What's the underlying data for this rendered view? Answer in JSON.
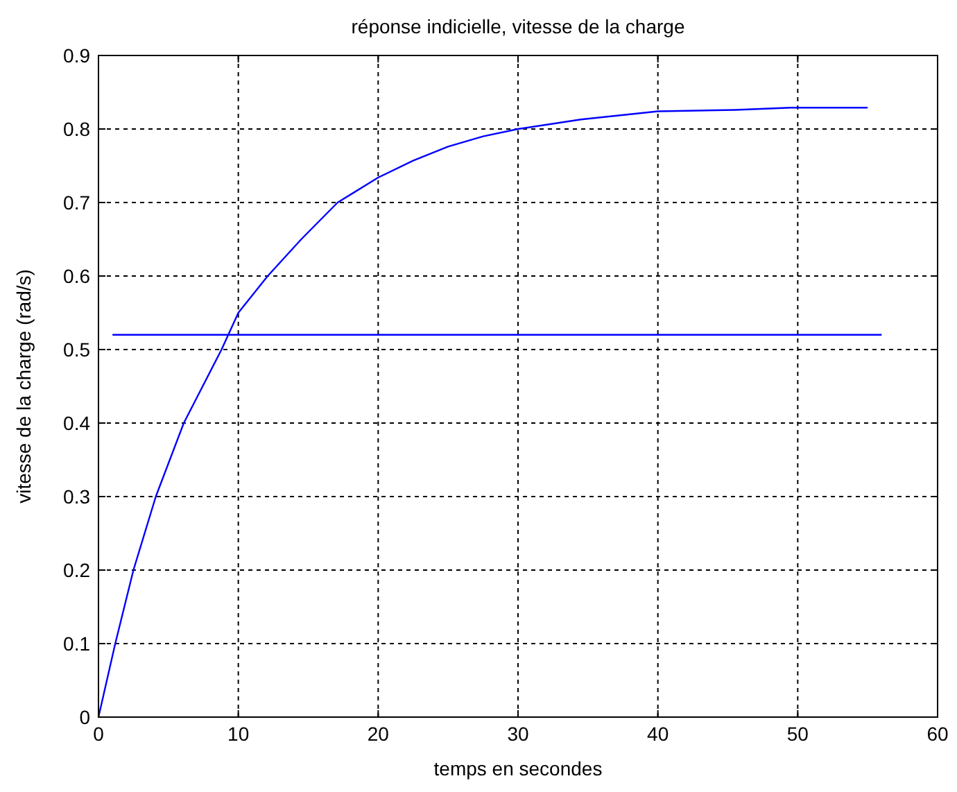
{
  "chart_data": {
    "type": "line",
    "title": "réponse indicielle, vitesse de la charge",
    "xlabel": "temps en secondes",
    "ylabel": "vitesse de la charge (rad/s)",
    "xlim": [
      0,
      60
    ],
    "ylim": [
      0,
      0.9
    ],
    "xticks": [
      0,
      10,
      20,
      30,
      40,
      50,
      60
    ],
    "yticks": [
      0,
      0.1,
      0.2,
      0.3,
      0.4,
      0.5,
      0.6,
      0.7,
      0.8,
      0.9
    ],
    "grid": true,
    "line_style": "solid",
    "series": [
      {
        "color": "#0000ff",
        "x": [
          0,
          1.2,
          2.5,
          4.1,
          6.1,
          8.8,
          10,
          12.1,
          14.5,
          17.1,
          20,
          22.5,
          25,
          27.5,
          30,
          34.5,
          40,
          45.5,
          49.5,
          55
        ],
        "values": [
          0,
          0.1,
          0.2,
          0.3,
          0.4,
          0.5,
          0.55,
          0.6,
          0.65,
          0.7,
          0.734,
          0.757,
          0.776,
          0.79,
          0.8,
          0.813,
          0.824,
          0.826,
          0.829,
          0.829
        ]
      },
      {
        "color": "#0000ff",
        "x": [
          1,
          56
        ],
        "values": [
          0.52,
          0.52
        ]
      }
    ]
  }
}
